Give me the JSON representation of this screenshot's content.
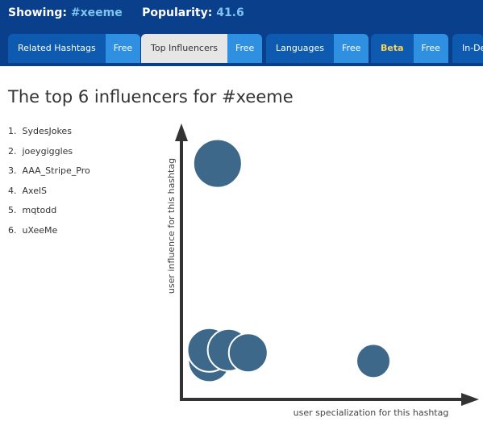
{
  "header": {
    "showing_label": "Showing:",
    "hashtag": "#xeeme",
    "popularity_label": "Popularity:",
    "popularity": 41.6
  },
  "tabs": [
    {
      "label": "Related Hashtags",
      "badge": "Free"
    },
    {
      "label": "Top Influencers",
      "badge": "Free"
    },
    {
      "label": "Languages",
      "badge": "Free"
    },
    {
      "label": "Beta",
      "badge": "Free"
    },
    {
      "label": "In-De"
    }
  ],
  "title": "The top 6 influencers for #xeeme",
  "influencers": [
    "SydesJokes",
    "joeygiggles",
    "AAA_Stripe_Pro",
    "AxelS",
    "mqtodd",
    "uXeeMe"
  ],
  "chart_data": {
    "type": "scatter",
    "x_label": "user specialization for this hashtag",
    "y_label": "user influence for this hashtag",
    "x": [
      13,
      10,
      10,
      17,
      24,
      69
    ],
    "y": [
      86,
      14,
      18,
      18,
      17,
      14
    ],
    "sizes": [
      30,
      26,
      27,
      26,
      24,
      21
    ],
    "xlim": [
      0,
      100
    ],
    "ylim": [
      0,
      100
    ],
    "color": "#3d6889"
  }
}
